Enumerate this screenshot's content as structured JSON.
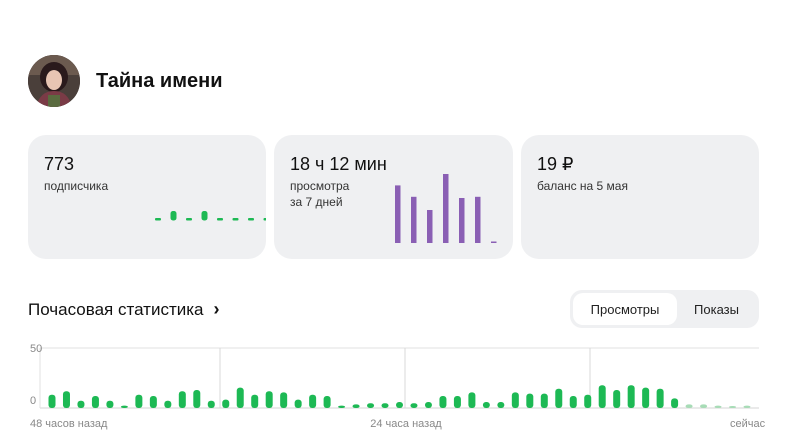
{
  "channel": {
    "name": "Тайна имени"
  },
  "cards": [
    {
      "value": "773",
      "label_lines": [
        "подписчика"
      ]
    },
    {
      "value": "18 ч 12 мин",
      "label_lines": [
        "просмотра",
        "за 7 дней"
      ]
    },
    {
      "value": "19 ₽",
      "label_lines": [
        "баланс на 5 мая"
      ]
    }
  ],
  "colors": {
    "accent_green": "#1db954",
    "views_purple": "#8a5fb4",
    "card_bg": "#eff0f2",
    "muted_green": "#a7dcb6",
    "gray_mark": "#b7b7b7"
  },
  "hourly": {
    "title": "Почасовая статистика",
    "tabs": [
      {
        "label": "Просмотры",
        "active": true
      },
      {
        "label": "Показы",
        "active": false
      }
    ]
  },
  "chart_data": [
    {
      "type": "bar",
      "title": "",
      "series": [
        {
          "values": [
            0,
            1,
            0,
            1,
            0,
            0,
            0,
            0
          ]
        }
      ],
      "categories": [
        "1",
        "2",
        "3",
        "4",
        "5",
        "6",
        "7",
        "8"
      ],
      "ylim": [
        -2,
        4
      ],
      "grid": false
    },
    {
      "type": "bar",
      "title": "",
      "series": [
        {
          "values": [
            9.6,
            7.7,
            5.5,
            11.5,
            7.5,
            7.7,
            0.1
          ]
        }
      ],
      "categories": [
        "1",
        "2",
        "3",
        "4",
        "5",
        "6",
        "7"
      ],
      "ylim": [
        0,
        12
      ],
      "grid": false
    },
    {
      "type": "bar",
      "title": "",
      "ylabel": "",
      "ylim": [
        0,
        50
      ],
      "yticks": [
        "50",
        "0"
      ],
      "xticks": [
        "48 часов назад",
        "24 часа назад",
        "сейчас"
      ],
      "grid": true,
      "series": [
        {
          "values": [
            11,
            14,
            6,
            10,
            6,
            2,
            11,
            10,
            6,
            14,
            15,
            6,
            7,
            17,
            11,
            14,
            13,
            7,
            11,
            10,
            2,
            3,
            4,
            4,
            5,
            4,
            5,
            10,
            10,
            13,
            5,
            5,
            13,
            12,
            12,
            16,
            10,
            11,
            19,
            15,
            19,
            17,
            16,
            8,
            3,
            3,
            2,
            1,
            2
          ]
        }
      ]
    }
  ]
}
